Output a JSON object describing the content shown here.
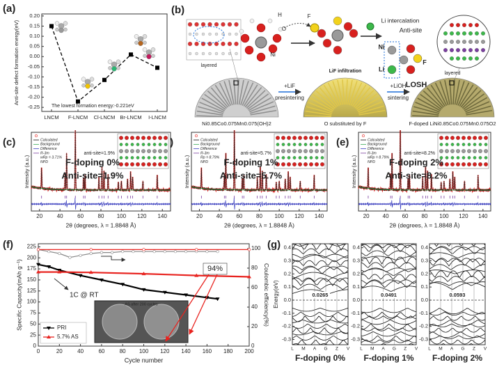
{
  "chart_data": [
    {
      "panel": "(a)",
      "type": "line",
      "ylabel": "Anti-site defect formation energy(eV)",
      "categories": [
        "LNCM",
        "F-LNCM",
        "Cl-LNCM",
        "Br-LNCM",
        "I-LNCM"
      ],
      "values": [
        0.15,
        -0.221,
        -0.115,
        0.01,
        -0.055
      ],
      "color": "#000000",
      "ylim": [
        -0.27,
        0.21
      ],
      "yticks": [
        -0.25,
        {
          "value": -0.2,
          "label": "-0.20"
        },
        -0.15,
        {
          "value": -0.1,
          "label": "-0.10"
        },
        -0.05,
        {
          "value": 0,
          "label": "0.00"
        },
        0.05,
        {
          "value": 0.1,
          "label": "0.10"
        },
        0.15,
        {
          "value": 0.2,
          "label": "0.20"
        }
      ],
      "annotation": "The lowest formation energy:-0.221eV"
    },
    {
      "panel": "(c)",
      "type": "xrd",
      "ylabel": "Intensity (a.u.)",
      "xlabel": "2θ (degrees, λ = 1.8848 Å)",
      "xlim": [
        12,
        148
      ],
      "xticks": [
        20,
        40,
        60,
        80,
        100,
        120,
        140
      ],
      "legend": [
        "Calculated",
        "Background",
        "Difference",
        "R-3m",
        "wRp = 3.71%",
        "NPD"
      ],
      "annotation": "anti-site=1.9%",
      "doping": "F-doping 0%",
      "antisite": "Anti-site=1.9%"
    },
    {
      "panel": "(d)",
      "type": "xrd",
      "ylabel": "Intensity (a.u.)",
      "xlabel": "2θ (degrees, λ = 1.8848 Å)",
      "xlim": [
        12,
        148
      ],
      "xticks": [
        20,
        40,
        60,
        80,
        100,
        120,
        140
      ],
      "legend": [
        "Calculated",
        "Background",
        "Difference",
        "R-3m",
        "Rp = 8.79%",
        "NPD"
      ],
      "annotation": "anti-site=5.7%",
      "doping": "F-doping 1%",
      "antisite": "Anti-site=5.7%"
    },
    {
      "panel": "(e)",
      "type": "xrd",
      "ylabel": "Intensity (a.u.)",
      "xlabel": "2θ (degrees, λ = 1.8848 Å)",
      "xlim": [
        12,
        148
      ],
      "xticks": [
        20,
        40,
        60,
        80,
        100,
        120,
        140
      ],
      "legend": [
        "Calculated",
        "Background",
        "Difference",
        "R-3m",
        "wRp = 8.79%",
        "NPD"
      ],
      "annotation": "anti-site=8.2%",
      "doping": "F-doping 2%",
      "antisite": "Anti-site=8.2%"
    },
    {
      "panel": "(f)",
      "type": "line",
      "xlabel": "Cycle number",
      "ylabel": "Specific Capacity(mAh g⁻¹)",
      "y2label": "Coulombic efficiency(%)",
      "xlim": [
        0,
        200
      ],
      "xticks": [
        0,
        20,
        40,
        60,
        80,
        100,
        120,
        140,
        160,
        180,
        200
      ],
      "ylim": [
        0,
        232
      ],
      "yticks": [
        0,
        25,
        50,
        75,
        100,
        125,
        150,
        175,
        200,
        225
      ],
      "y2lim": [
        0,
        105
      ],
      "y2ticks": [
        0,
        20,
        40,
        60,
        80,
        100
      ],
      "series": [
        {
          "name": "PRI",
          "color": "#000000",
          "x": [
            0,
            10,
            20,
            40,
            60,
            80,
            100,
            120,
            140,
            160,
            170
          ],
          "values": [
            185,
            180,
            172,
            160,
            150,
            140,
            128,
            122,
            116,
            110,
            107
          ]
        },
        {
          "name": "5.7% AS",
          "color": "#e8231f",
          "x": [
            0,
            20,
            50,
            100,
            150,
            200
          ],
          "values": [
            168,
            168,
            167,
            164,
            160,
            157
          ]
        },
        {
          "color": "#888888",
          "axis": "y2",
          "x": [
            0,
            10,
            20,
            30,
            40,
            50,
            60,
            70,
            80,
            90,
            100,
            110,
            120,
            130,
            140,
            150,
            160,
            170
          ],
          "values": [
            99,
            97,
            95,
            91,
            93,
            95,
            96,
            96,
            97,
            97,
            97,
            97,
            97,
            97,
            97,
            97,
            97,
            97
          ]
        },
        {
          "color": "#e8231f",
          "axis": "y2",
          "x": [
            0,
            50,
            100,
            150,
            200
          ],
          "values": [
            99,
            99,
            99,
            99,
            99
          ]
        }
      ],
      "annotations": [
        "94%",
        "1C @ RT",
        "AS after 200 cycles"
      ]
    },
    {
      "panel": "(g)",
      "type": "band",
      "ylabel": "Energy(eV)",
      "ylim": [
        -0.34,
        0.43
      ],
      "yticks": [
        -0.3,
        -0.2,
        -0.1,
        {
          "value": 0,
          "label": "0.0"
        },
        0.1,
        0.2,
        0.3,
        0.4
      ],
      "kpoints": [
        "L",
        "M",
        "A",
        "G",
        "Z",
        "V"
      ],
      "panels": [
        {
          "gap_label": "0.0265",
          "caption": "F-doping 0%"
        },
        {
          "gap_label": "0.0491",
          "caption": "F-doping 1%"
        },
        {
          "gap_label": "0.0593",
          "caption": "F-doping 2%"
        }
      ]
    }
  ],
  "diagram_b": {
    "panel": "(b)",
    "labels": {
      "layered_left": "layered",
      "h": "H",
      "o": "O",
      "ni": "Ni",
      "f": "F",
      "li_intercalation": "Li intercalation",
      "anti_site": "Anti-site",
      "ni2": "Ni",
      "li": "Li",
      "f2": "F",
      "losh": "LOSH",
      "layered_right": "layered",
      "lif_infiltration": "LiF infiltration",
      "plus_lif": "+LiF",
      "presintering": "presintering",
      "plus_lioh": "+LiOH",
      "sintering": "sintering",
      "precursor": "Ni0.85Co0.075Mn0.075(OH)2",
      "substituted": "O substituted by F",
      "product": "F-doped LiNi0.85Co0.075Mn0.075O2"
    }
  }
}
